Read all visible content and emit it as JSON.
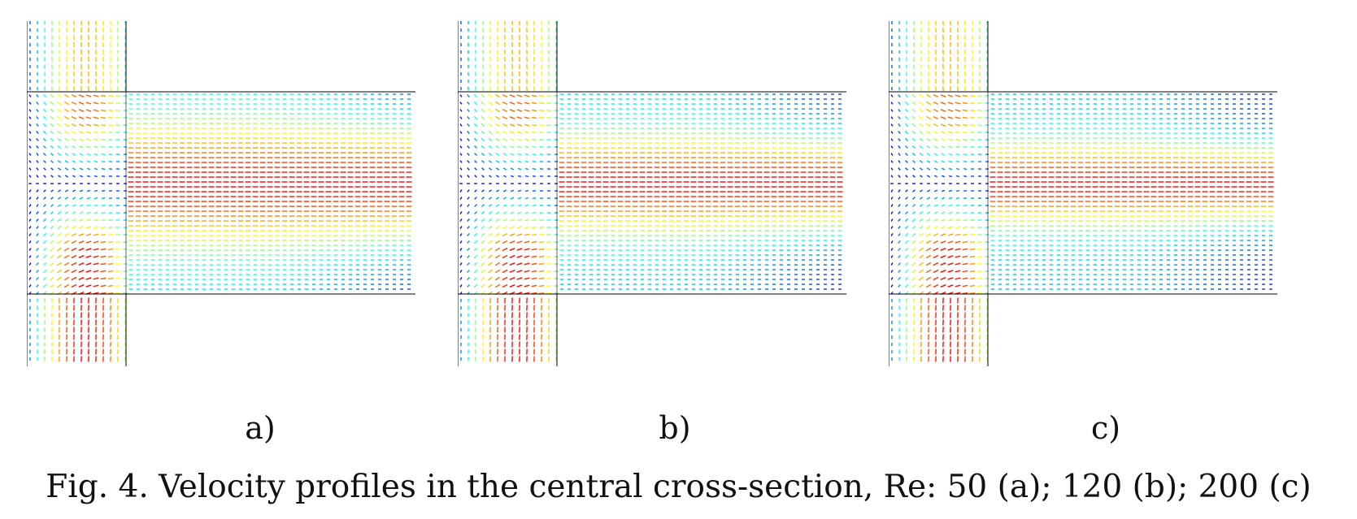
{
  "figure": {
    "caption": "Fig. 4. Velocity profiles in the central cross-section, Re: 50 (a); 120 (b); 200 (c)",
    "panels": [
      {
        "label": "a)",
        "re": 50,
        "inlet_color": "#e8e000",
        "outlet_peak_color": "#e81e00"
      },
      {
        "label": "b)",
        "re": 120,
        "inlet_color": "#f07000",
        "outlet_peak_color": "#ff2a00"
      },
      {
        "label": "c)",
        "re": 200,
        "inlet_color": "#f5c000",
        "outlet_peak_color": "#ff3000"
      }
    ],
    "colormap": [
      "#00008f",
      "#0000ff",
      "#0080ff",
      "#00ffff",
      "#80ff80",
      "#ffff00",
      "#ff8000",
      "#ff0000"
    ]
  }
}
